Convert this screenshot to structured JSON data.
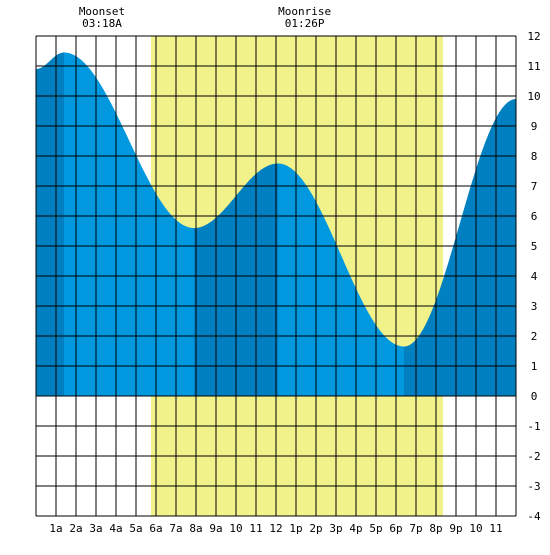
{
  "chart_data": {
    "type": "area",
    "title": "",
    "xlabel": "",
    "ylabel": "",
    "x_ticks": [
      "1a",
      "2a",
      "3a",
      "4a",
      "5a",
      "6a",
      "7a",
      "8a",
      "9a",
      "10",
      "11",
      "12",
      "1p",
      "2p",
      "3p",
      "4p",
      "5p",
      "6p",
      "7p",
      "8p",
      "9p",
      "10",
      "11"
    ],
    "y_ticks": [
      "12",
      "11",
      "10",
      "9",
      "8",
      "7",
      "6",
      "5",
      "4",
      "3",
      "2",
      "1",
      "0",
      "-1",
      "-2",
      "-3",
      "-4"
    ],
    "xlim": [
      0,
      24
    ],
    "ylim": [
      -4,
      12
    ],
    "grid": true,
    "annotations": [
      {
        "name": "Moonset",
        "time": "03:18A",
        "hour": 3.3
      },
      {
        "name": "Moonrise",
        "time": "01:26P",
        "hour": 13.43
      }
    ],
    "daylight": {
      "start_hour": 5.75,
      "end_hour": 20.35
    },
    "tide_extremes": [
      {
        "type": "high",
        "hour": 1.4,
        "height": 11.45
      },
      {
        "type": "low",
        "hour": 7.9,
        "height": 5.6
      },
      {
        "type": "high",
        "hour": 12.1,
        "height": 7.75
      },
      {
        "type": "low",
        "hour": 18.4,
        "height": 1.65
      }
    ],
    "series": [
      {
        "values_hour": [
          0,
          1.4,
          7.9,
          12.1,
          18.4,
          24
        ],
        "values_height": [
          10.9,
          11.45,
          5.6,
          7.75,
          1.65,
          9.9
        ]
      }
    ],
    "colors": {
      "daylight": "#f2f28a",
      "tide_light": "#0099e0",
      "tide_dark": "#0080c0",
      "grid": "#000000"
    }
  }
}
